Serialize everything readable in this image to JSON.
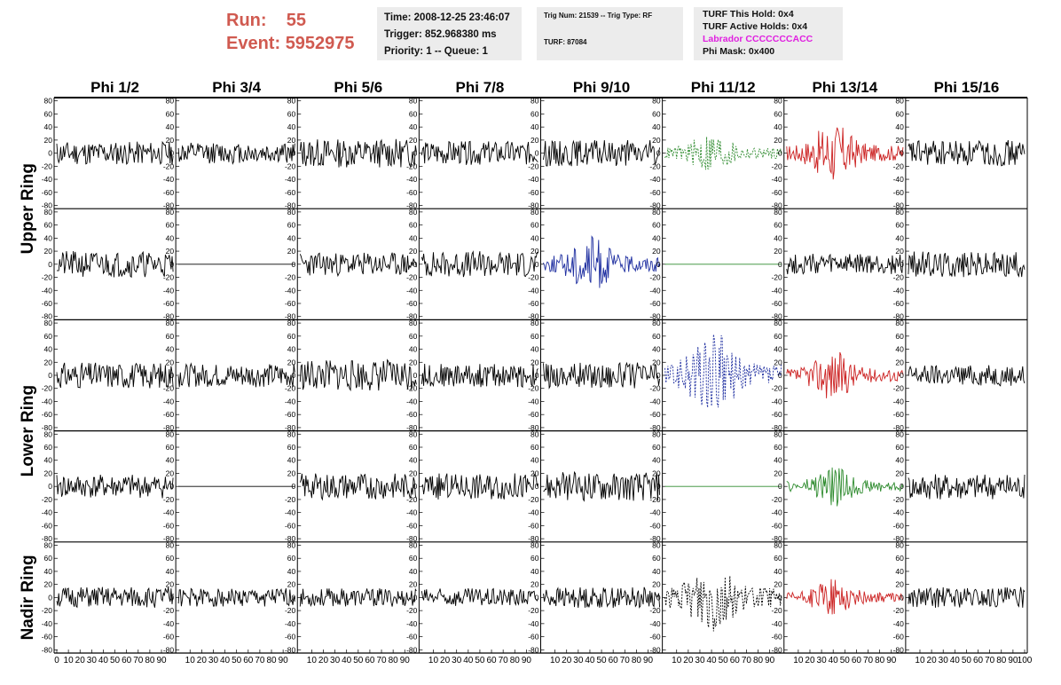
{
  "header": {
    "run_label": "Run:",
    "run_value": "55",
    "event_label": "Event:",
    "event_value": "5952975",
    "time": "Time: 2008-12-25 23:46:07",
    "trigger": "Trigger: 852.968380 ms",
    "priority": "Priority: 1 -- Queue: 1",
    "trig_num": "Trig Num: 21539 -- Trig Type: RF",
    "turf": "TURF: 87084",
    "turf_hold": "TURF This Hold: 0x4",
    "turf_active": "TURF Active Holds: 0x4",
    "labrador": "Labrador CCCCCCCACC",
    "phi_mask": "Phi Mask: 0x400"
  },
  "chart_data": {
    "type": "line",
    "columns": [
      "Phi 1/2",
      "Phi 3/4",
      "Phi 5/6",
      "Phi 7/8",
      "Phi 9/10",
      "Phi 11/12",
      "Phi 13/14",
      "Phi 15/16"
    ],
    "ring_labels": [
      {
        "text": "Upper Ring",
        "rows": [
          0,
          1
        ]
      },
      {
        "text": "Lower Ring",
        "rows": [
          2,
          3
        ]
      },
      {
        "text": "Nadir Ring",
        "rows": [
          4
        ]
      }
    ],
    "ylim": [
      -85,
      85
    ],
    "xlim": [
      0,
      100
    ],
    "yticks": [
      -80,
      -60,
      -40,
      -20,
      0,
      20,
      40,
      60,
      80
    ],
    "x_tick_labels": [
      "0",
      "10",
      "20",
      "30",
      "40",
      "50",
      "60",
      "70",
      "80",
      "90",
      "100"
    ],
    "colors": {
      "black": "#000000",
      "green": "#2e8b2e",
      "red": "#cc2222",
      "blue": "#1e2ea0"
    },
    "traces": [
      [
        {
          "color": "black",
          "amp": 18,
          "shape": "noise",
          "seed": 11
        },
        {
          "color": "black",
          "amp": 16,
          "shape": "noise",
          "seed": 12
        },
        {
          "color": "black",
          "amp": 22,
          "shape": "noise",
          "seed": 13
        },
        {
          "color": "black",
          "amp": 18,
          "shape": "noise",
          "seed": 14
        },
        {
          "color": "black",
          "amp": 20,
          "shape": "noise",
          "seed": 15
        },
        {
          "color": "green",
          "amp": 28,
          "shape": "burst",
          "dashed": true,
          "seed": 16
        },
        {
          "color": "red",
          "amp": 40,
          "shape": "burst",
          "seed": 17
        },
        {
          "color": "black",
          "amp": 20,
          "shape": "noise",
          "seed": 18
        }
      ],
      [
        {
          "color": "black",
          "amp": 20,
          "shape": "noise",
          "seed": 21
        },
        {
          "color": "black",
          "amp": 0,
          "shape": "flat",
          "seed": 22
        },
        {
          "color": "black",
          "amp": 18,
          "shape": "noise",
          "seed": 23
        },
        {
          "color": "black",
          "amp": 20,
          "shape": "noise",
          "seed": 24
        },
        {
          "color": "blue",
          "amp": 38,
          "shape": "burst",
          "seed": 25
        },
        {
          "color": "green",
          "amp": 0,
          "shape": "flat",
          "seed": 26
        },
        {
          "color": "black",
          "amp": 16,
          "shape": "noise",
          "seed": 27
        },
        {
          "color": "black",
          "amp": 20,
          "shape": "noise",
          "seed": 28
        }
      ],
      [
        {
          "color": "black",
          "amp": 20,
          "shape": "noise",
          "seed": 31
        },
        {
          "color": "black",
          "amp": 18,
          "shape": "noise",
          "seed": 32
        },
        {
          "color": "black",
          "amp": 24,
          "shape": "noise",
          "seed": 33
        },
        {
          "color": "black",
          "amp": 18,
          "shape": "noise",
          "seed": 34
        },
        {
          "color": "black",
          "amp": 20,
          "shape": "noise",
          "seed": 35
        },
        {
          "color": "blue",
          "amp": 60,
          "shape": "burst",
          "dashed": true,
          "seed": 36
        },
        {
          "color": "red",
          "amp": 32,
          "shape": "burst",
          "seed": 37
        },
        {
          "color": "black",
          "amp": 16,
          "shape": "noise",
          "seed": 38
        }
      ],
      [
        {
          "color": "black",
          "amp": 18,
          "shape": "noise",
          "seed": 41
        },
        {
          "color": "black",
          "amp": 0,
          "shape": "flat",
          "seed": 42
        },
        {
          "color": "black",
          "amp": 20,
          "shape": "noise",
          "seed": 43
        },
        {
          "color": "black",
          "amp": 20,
          "shape": "noise",
          "seed": 44
        },
        {
          "color": "black",
          "amp": 22,
          "shape": "noise",
          "seed": 45
        },
        {
          "color": "green",
          "amp": 0,
          "shape": "flat",
          "seed": 46
        },
        {
          "color": "green",
          "amp": 26,
          "shape": "burst",
          "seed": 47
        },
        {
          "color": "black",
          "amp": 20,
          "shape": "noise",
          "seed": 48
        }
      ],
      [
        {
          "color": "black",
          "amp": 16,
          "shape": "noise",
          "seed": 51
        },
        {
          "color": "black",
          "amp": 14,
          "shape": "noise",
          "seed": 52
        },
        {
          "color": "black",
          "amp": 14,
          "shape": "noise",
          "seed": 53
        },
        {
          "color": "black",
          "amp": 14,
          "shape": "noise",
          "seed": 54
        },
        {
          "color": "black",
          "amp": 16,
          "shape": "noise",
          "seed": 55
        },
        {
          "color": "black",
          "amp": 50,
          "shape": "burst",
          "dashed": true,
          "seed": 56
        },
        {
          "color": "red",
          "amp": 24,
          "shape": "burst",
          "seed": 57
        },
        {
          "color": "black",
          "amp": 16,
          "shape": "noise",
          "seed": 58
        }
      ]
    ]
  }
}
